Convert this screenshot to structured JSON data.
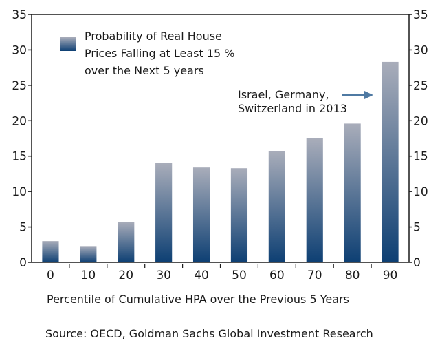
{
  "chart_data": {
    "type": "bar",
    "title": "",
    "categories": [
      "0",
      "10",
      "20",
      "30",
      "40",
      "50",
      "60",
      "70",
      "80",
      "90"
    ],
    "series": [
      {
        "name": "Probability of Real House Prices Falling at Least 15 % over the Next 5 years",
        "values": [
          3.0,
          2.3,
          5.7,
          14.0,
          13.4,
          13.3,
          15.7,
          17.5,
          19.6,
          28.3
        ]
      }
    ],
    "xlabel": "Percentile of Cumulative HPA over the Previous 5 Years",
    "ylabel": "",
    "ylim": [
      0,
      35
    ],
    "yticks": [
      0,
      5,
      10,
      15,
      20,
      25,
      30,
      35
    ],
    "ytick_labels": [
      "0",
      "5",
      "10",
      "15",
      "20",
      "25",
      "30",
      "35"
    ],
    "secondary_yticks": [
      "0",
      "5",
      "10",
      "15",
      "20",
      "25",
      "30",
      "35"
    ],
    "grid": false,
    "legend": {
      "placement": "top-left",
      "lines": [
        "Probability of Real House",
        "Prices Falling at Least 15 %",
        "over the Next 5 years"
      ]
    },
    "annotation": {
      "lines": [
        "Israel, Germany,",
        "Switzerland in 2013"
      ],
      "points_to_category": "90"
    },
    "source": "Source: OECD, Goldman Sachs Global Investment Research",
    "colors": {
      "bar_top": "#a9adba",
      "bar_bottom": "#0d3f73",
      "axis": "#1a1a1a",
      "arrow": "#4f7aa3"
    }
  }
}
